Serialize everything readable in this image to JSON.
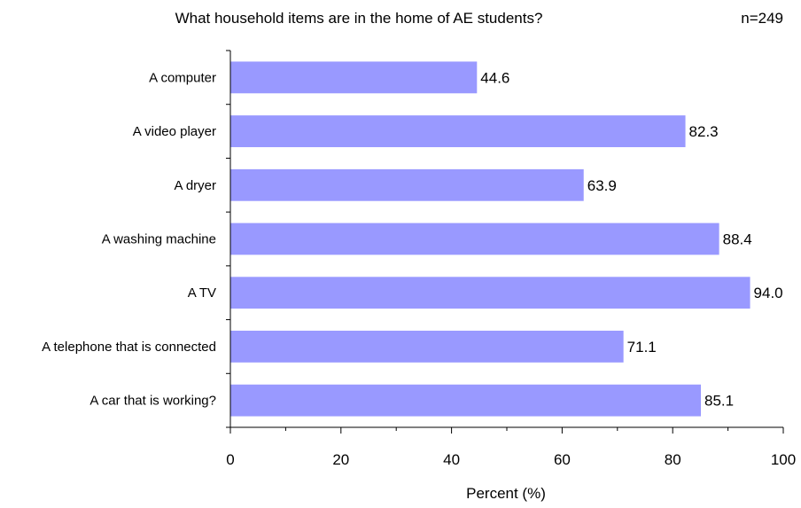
{
  "chart_data": {
    "type": "bar",
    "orientation": "horizontal",
    "title": "What household items are in the home of AE students?",
    "sample_size": "n=249",
    "categories": [
      "A computer",
      "A video player",
      "A dryer",
      "A washing machine",
      "A TV",
      "A telephone that is connected",
      "A car that is working?"
    ],
    "values": [
      44.6,
      82.3,
      63.9,
      88.4,
      94.0,
      71.1,
      85.1
    ],
    "value_labels": [
      "44.6",
      "82.3",
      "63.9",
      "88.4",
      "94.0",
      "71.1",
      "85.1"
    ],
    "xlabel": "Percent (%)",
    "ylabel": "",
    "xlim": [
      0,
      100
    ],
    "xticks": [
      "0",
      "20",
      "40",
      "60",
      "80",
      "100"
    ],
    "grid": false,
    "legend": "none",
    "bar_color": "#9999ff"
  }
}
